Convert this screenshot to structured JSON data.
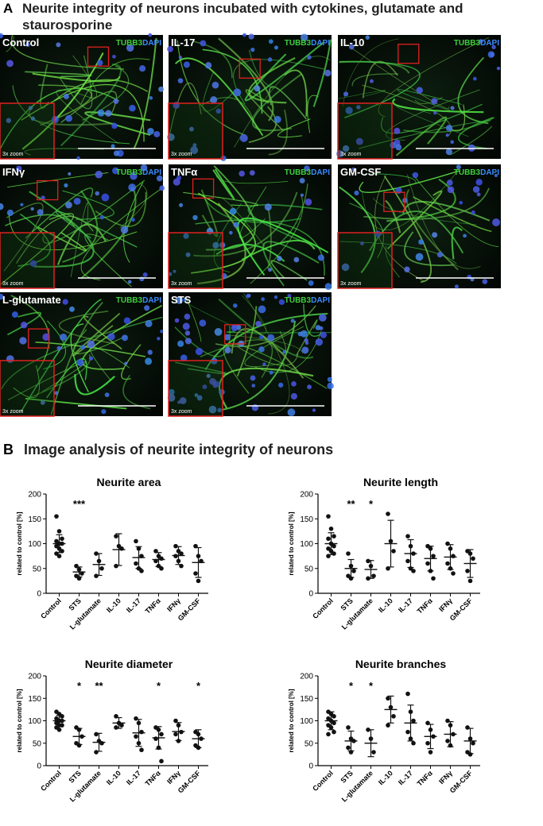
{
  "panel_a": {
    "letter": "A",
    "title": "Neurite integrity of neurons incubated with cytokines, glutamate and staurosporine",
    "stain1": "TUBB3",
    "stain2": "DAPI",
    "zoom_label": "3x zoom",
    "images": [
      "Control",
      "IL-17",
      "IL-10",
      "IFNγ",
      "TNFα",
      "GM-CSF",
      "L-glutamate",
      "STS"
    ]
  },
  "panel_b": {
    "letter": "B",
    "title": "Image analysis of neurite integrity of neurons"
  },
  "chart_data": [
    {
      "type": "dot",
      "title": "Neurite area",
      "y_label": "related to control [%]",
      "categories": [
        "Control",
        "STS",
        "L-glutamate",
        "IL-10",
        "IL-17",
        "TNFα",
        "IFNγ",
        "GM-CSF"
      ],
      "ylim": [
        0,
        200
      ],
      "yticks": [
        0,
        50,
        100,
        150,
        200
      ],
      "points": [
        [
          155,
          125,
          110,
          105,
          100,
          100,
          95,
          90,
          85,
          80,
          75
        ],
        [
          55,
          48,
          40,
          35,
          30
        ],
        [
          80,
          65,
          50,
          35
        ],
        [
          115,
          95,
          90,
          55
        ],
        [
          105,
          90,
          75,
          60,
          50,
          45
        ],
        [
          85,
          75,
          70,
          65,
          55,
          50
        ],
        [
          95,
          85,
          80,
          75,
          65,
          55
        ],
        [
          95,
          75,
          65,
          40,
          25
        ]
      ],
      "means": [
        100,
        43,
        58,
        88,
        72,
        68,
        76,
        62
      ],
      "sd": [
        18,
        10,
        22,
        32,
        22,
        14,
        18,
        30
      ],
      "significance": [
        null,
        "***",
        null,
        null,
        null,
        null,
        null,
        null
      ]
    },
    {
      "type": "dot",
      "title": "Neurite length",
      "y_label": "related to control [%]",
      "categories": [
        "Control",
        "STS",
        "L-glutamate",
        "IL-10",
        "IL-17",
        "TNFα",
        "IFNγ",
        "GM-CSF"
      ],
      "ylim": [
        0,
        200
      ],
      "yticks": [
        0,
        50,
        100,
        150,
        200
      ],
      "points": [
        [
          155,
          130,
          115,
          110,
          100,
          95,
          90,
          85,
          80,
          75
        ],
        [
          80,
          55,
          45,
          35,
          30
        ],
        [
          65,
          55,
          35,
          30
        ],
        [
          160,
          105,
          85,
          50
        ],
        [
          115,
          95,
          80,
          65,
          50,
          45
        ],
        [
          95,
          90,
          75,
          60,
          45,
          30
        ],
        [
          100,
          90,
          75,
          60,
          50,
          40
        ],
        [
          85,
          80,
          70,
          45,
          25
        ]
      ],
      "means": [
        100,
        50,
        48,
        100,
        80,
        70,
        73,
        60
      ],
      "sd": [
        22,
        18,
        18,
        47,
        28,
        25,
        25,
        28
      ],
      "significance": [
        null,
        "**",
        "*",
        null,
        null,
        null,
        null,
        null
      ]
    },
    {
      "type": "dot",
      "title": "Neurite diameter",
      "y_label": "related to control [%]",
      "categories": [
        "Control",
        "STS",
        "L-glutamate",
        "IL-10",
        "IL-17",
        "TNFα",
        "IFNγ",
        "GM-CSF"
      ],
      "ylim": [
        0,
        200
      ],
      "yticks": [
        0,
        50,
        100,
        150,
        200
      ],
      "points": [
        [
          120,
          115,
          110,
          105,
          100,
          100,
          95,
          90,
          90,
          85,
          80
        ],
        [
          85,
          80,
          65,
          50,
          45
        ],
        [
          70,
          55,
          50,
          30
        ],
        [
          110,
          95,
          90,
          85
        ],
        [
          105,
          95,
          75,
          65,
          50,
          35
        ],
        [
          85,
          80,
          70,
          60,
          40,
          10
        ],
        [
          100,
          90,
          75,
          70,
          55
        ],
        [
          75,
          70,
          60,
          45,
          40
        ]
      ],
      "means": [
        100,
        65,
        52,
        95,
        73,
        62,
        76,
        60
      ],
      "sd": [
        12,
        18,
        20,
        12,
        30,
        25,
        20,
        20
      ],
      "significance": [
        null,
        "*",
        "**",
        null,
        null,
        "*",
        null,
        "*"
      ]
    },
    {
      "type": "dot",
      "title": "Neurite branches",
      "y_label": "related to control [%]",
      "categories": [
        "Control",
        "STS",
        "L-glutamate",
        "IL-10",
        "IL-17",
        "TNFα",
        "IFNγ",
        "GM-CSF"
      ],
      "ylim": [
        0,
        200
      ],
      "yticks": [
        0,
        50,
        100,
        150,
        200
      ],
      "points": [
        [
          120,
          115,
          110,
          105,
          100,
          95,
          90,
          85,
          75,
          70
        ],
        [
          85,
          60,
          55,
          40,
          30
        ],
        [
          80,
          60,
          30
        ],
        [
          150,
          130,
          110,
          90
        ],
        [
          160,
          120,
          100,
          75,
          60,
          50
        ],
        [
          95,
          80,
          65,
          50,
          30
        ],
        [
          100,
          90,
          70,
          55,
          45
        ],
        [
          85,
          60,
          50,
          30,
          25
        ]
      ],
      "means": [
        100,
        55,
        50,
        125,
        95,
        65,
        70,
        55
      ],
      "sd": [
        20,
        22,
        30,
        30,
        40,
        27,
        28,
        28
      ],
      "significance": [
        null,
        "*",
        "*",
        null,
        null,
        null,
        null,
        null
      ]
    }
  ]
}
